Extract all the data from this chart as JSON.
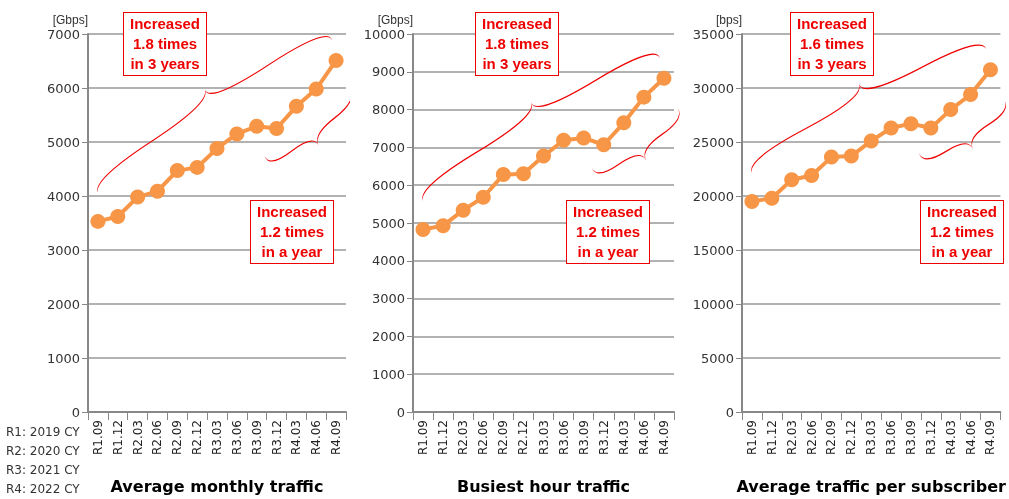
{
  "chart_data": [
    {
      "type": "line",
      "xlabel": "Average monthly traffic",
      "ylabel": "[Gbps]",
      "categories": [
        "R1.09",
        "R1.12",
        "R2.03",
        "R2.06",
        "R2.09",
        "R2.12",
        "R3.03",
        "R3.06",
        "R3.09",
        "R3.12",
        "R4.03",
        "R4.06",
        "R4.09"
      ],
      "series": [
        {
          "color": "#f79646",
          "values": [
            3530,
            3620,
            3980,
            4090,
            4470,
            4530,
            4880,
            5150,
            5290,
            5250,
            5660,
            5980,
            6510
          ]
        }
      ],
      "ylim": [
        0,
        7000
      ],
      "yticks": [
        0,
        1000,
        2000,
        3000,
        4000,
        5000,
        6000,
        7000
      ],
      "grid": "y",
      "marker": "circle",
      "line_style": "solid",
      "annotations": [
        "Increased 1.8 times in 3 years",
        "Increased 1.2 times in a year",
        "R1: 2019 CY",
        "R2: 2020 CY",
        "R3: 2021 CY",
        "R4: 2022 CY"
      ]
    },
    {
      "type": "line",
      "xlabel": "Busiest hour traffic",
      "ylabel": "[Gbps]",
      "categories": [
        "R1.09",
        "R1.12",
        "R2.03",
        "R2.06",
        "R2.09",
        "R2.12",
        "R3.03",
        "R3.06",
        "R3.09",
        "R3.12",
        "R4.03",
        "R4.06",
        "R4.09"
      ],
      "series": [
        {
          "color": "#f79646",
          "values": [
            4830,
            4930,
            5340,
            5680,
            6280,
            6300,
            6770,
            7190,
            7250,
            7070,
            7650,
            8330,
            8830
          ]
        }
      ],
      "ylim": [
        0,
        10000
      ],
      "yticks": [
        0,
        1000,
        2000,
        3000,
        4000,
        5000,
        6000,
        7000,
        8000,
        9000,
        10000
      ],
      "grid": "y",
      "marker": "circle",
      "line_style": "solid",
      "annotations": [
        "Increased 1.8 times in 3 years",
        "Increased 1.2 times in a year"
      ]
    },
    {
      "type": "line",
      "xlabel": "Average traffic per subscriber",
      "ylabel": "[bps]",
      "categories": [
        "R1.09",
        "R1.12",
        "R2.03",
        "R2.06",
        "R2.09",
        "R2.12",
        "R3.03",
        "R3.06",
        "R3.09",
        "R3.12",
        "R4.03",
        "R4.06",
        "R4.09"
      ],
      "series": [
        {
          "color": "#f79646",
          "values": [
            19500,
            19800,
            21500,
            21900,
            23600,
            23700,
            25100,
            26300,
            26700,
            26300,
            28000,
            29400,
            31700
          ]
        }
      ],
      "ylim": [
        0,
        35000
      ],
      "yticks": [
        0,
        5000,
        10000,
        15000,
        20000,
        25000,
        30000,
        35000
      ],
      "grid": "y",
      "marker": "circle",
      "line_style": "solid",
      "annotations": [
        "Increased 1.6 times in 3 years",
        "Increased 1.2 times in a year"
      ]
    }
  ]
}
